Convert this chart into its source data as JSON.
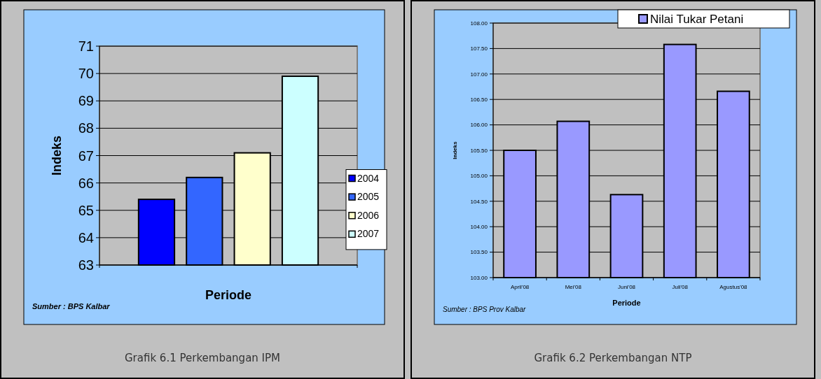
{
  "chart_data": [
    {
      "type": "bar",
      "ylabel": "Indeks",
      "xlabel": "Periode",
      "categories": [
        null
      ],
      "series": [
        {
          "name": "2004",
          "color": "#0000ff",
          "values": [
            65.4
          ]
        },
        {
          "name": "2005",
          "color": "#3366ff",
          "values": [
            66.2
          ]
        },
        {
          "name": "2006",
          "color": "#ffffcc",
          "values": [
            67.1
          ]
        },
        {
          "name": "2007",
          "color": "#ccffff",
          "values": [
            69.9
          ]
        }
      ],
      "ylim": [
        63,
        71
      ],
      "yticks": [
        63,
        64,
        65,
        66,
        67,
        68,
        69,
        70,
        71
      ],
      "grid": "y",
      "legend": "right",
      "annotations": [
        "Sumber : BPS Kalbar",
        "Grafik 6.1 Perkembangan IPM"
      ]
    },
    {
      "type": "bar",
      "ylabel": "Indeks",
      "xlabel": "Periode",
      "categories": [
        "April'08",
        "Mei'08",
        "Juni'08",
        "Juli'08",
        "Agustus'08"
      ],
      "series": [
        {
          "name": "Nilai Tukar Petani",
          "color": "#9999ff",
          "values": [
            105.5,
            106.07,
            104.63,
            107.58,
            106.66
          ]
        }
      ],
      "ylim": [
        103,
        108
      ],
      "yticks": [
        {
          "value": 103,
          "label": "103.00"
        },
        {
          "value": 103.5,
          "label": "103.50"
        },
        {
          "value": 104,
          "label": "104.00"
        },
        {
          "value": 104.5,
          "label": "104.50"
        },
        {
          "value": 105,
          "label": "105.00"
        },
        {
          "value": 105.5,
          "label": "105.50"
        },
        {
          "value": 106,
          "label": "106.00"
        },
        {
          "value": 106.5,
          "label": "106.50"
        },
        {
          "value": 107,
          "label": "107.00"
        },
        {
          "value": 107.5,
          "label": "107.50"
        },
        {
          "value": 108,
          "label": "108.00"
        }
      ],
      "grid": "y",
      "legend": "top right",
      "annotations": [
        "Sumber : BPS Prov Kalbar",
        "Grafik 6.2 Perkembangan NTP"
      ]
    }
  ]
}
